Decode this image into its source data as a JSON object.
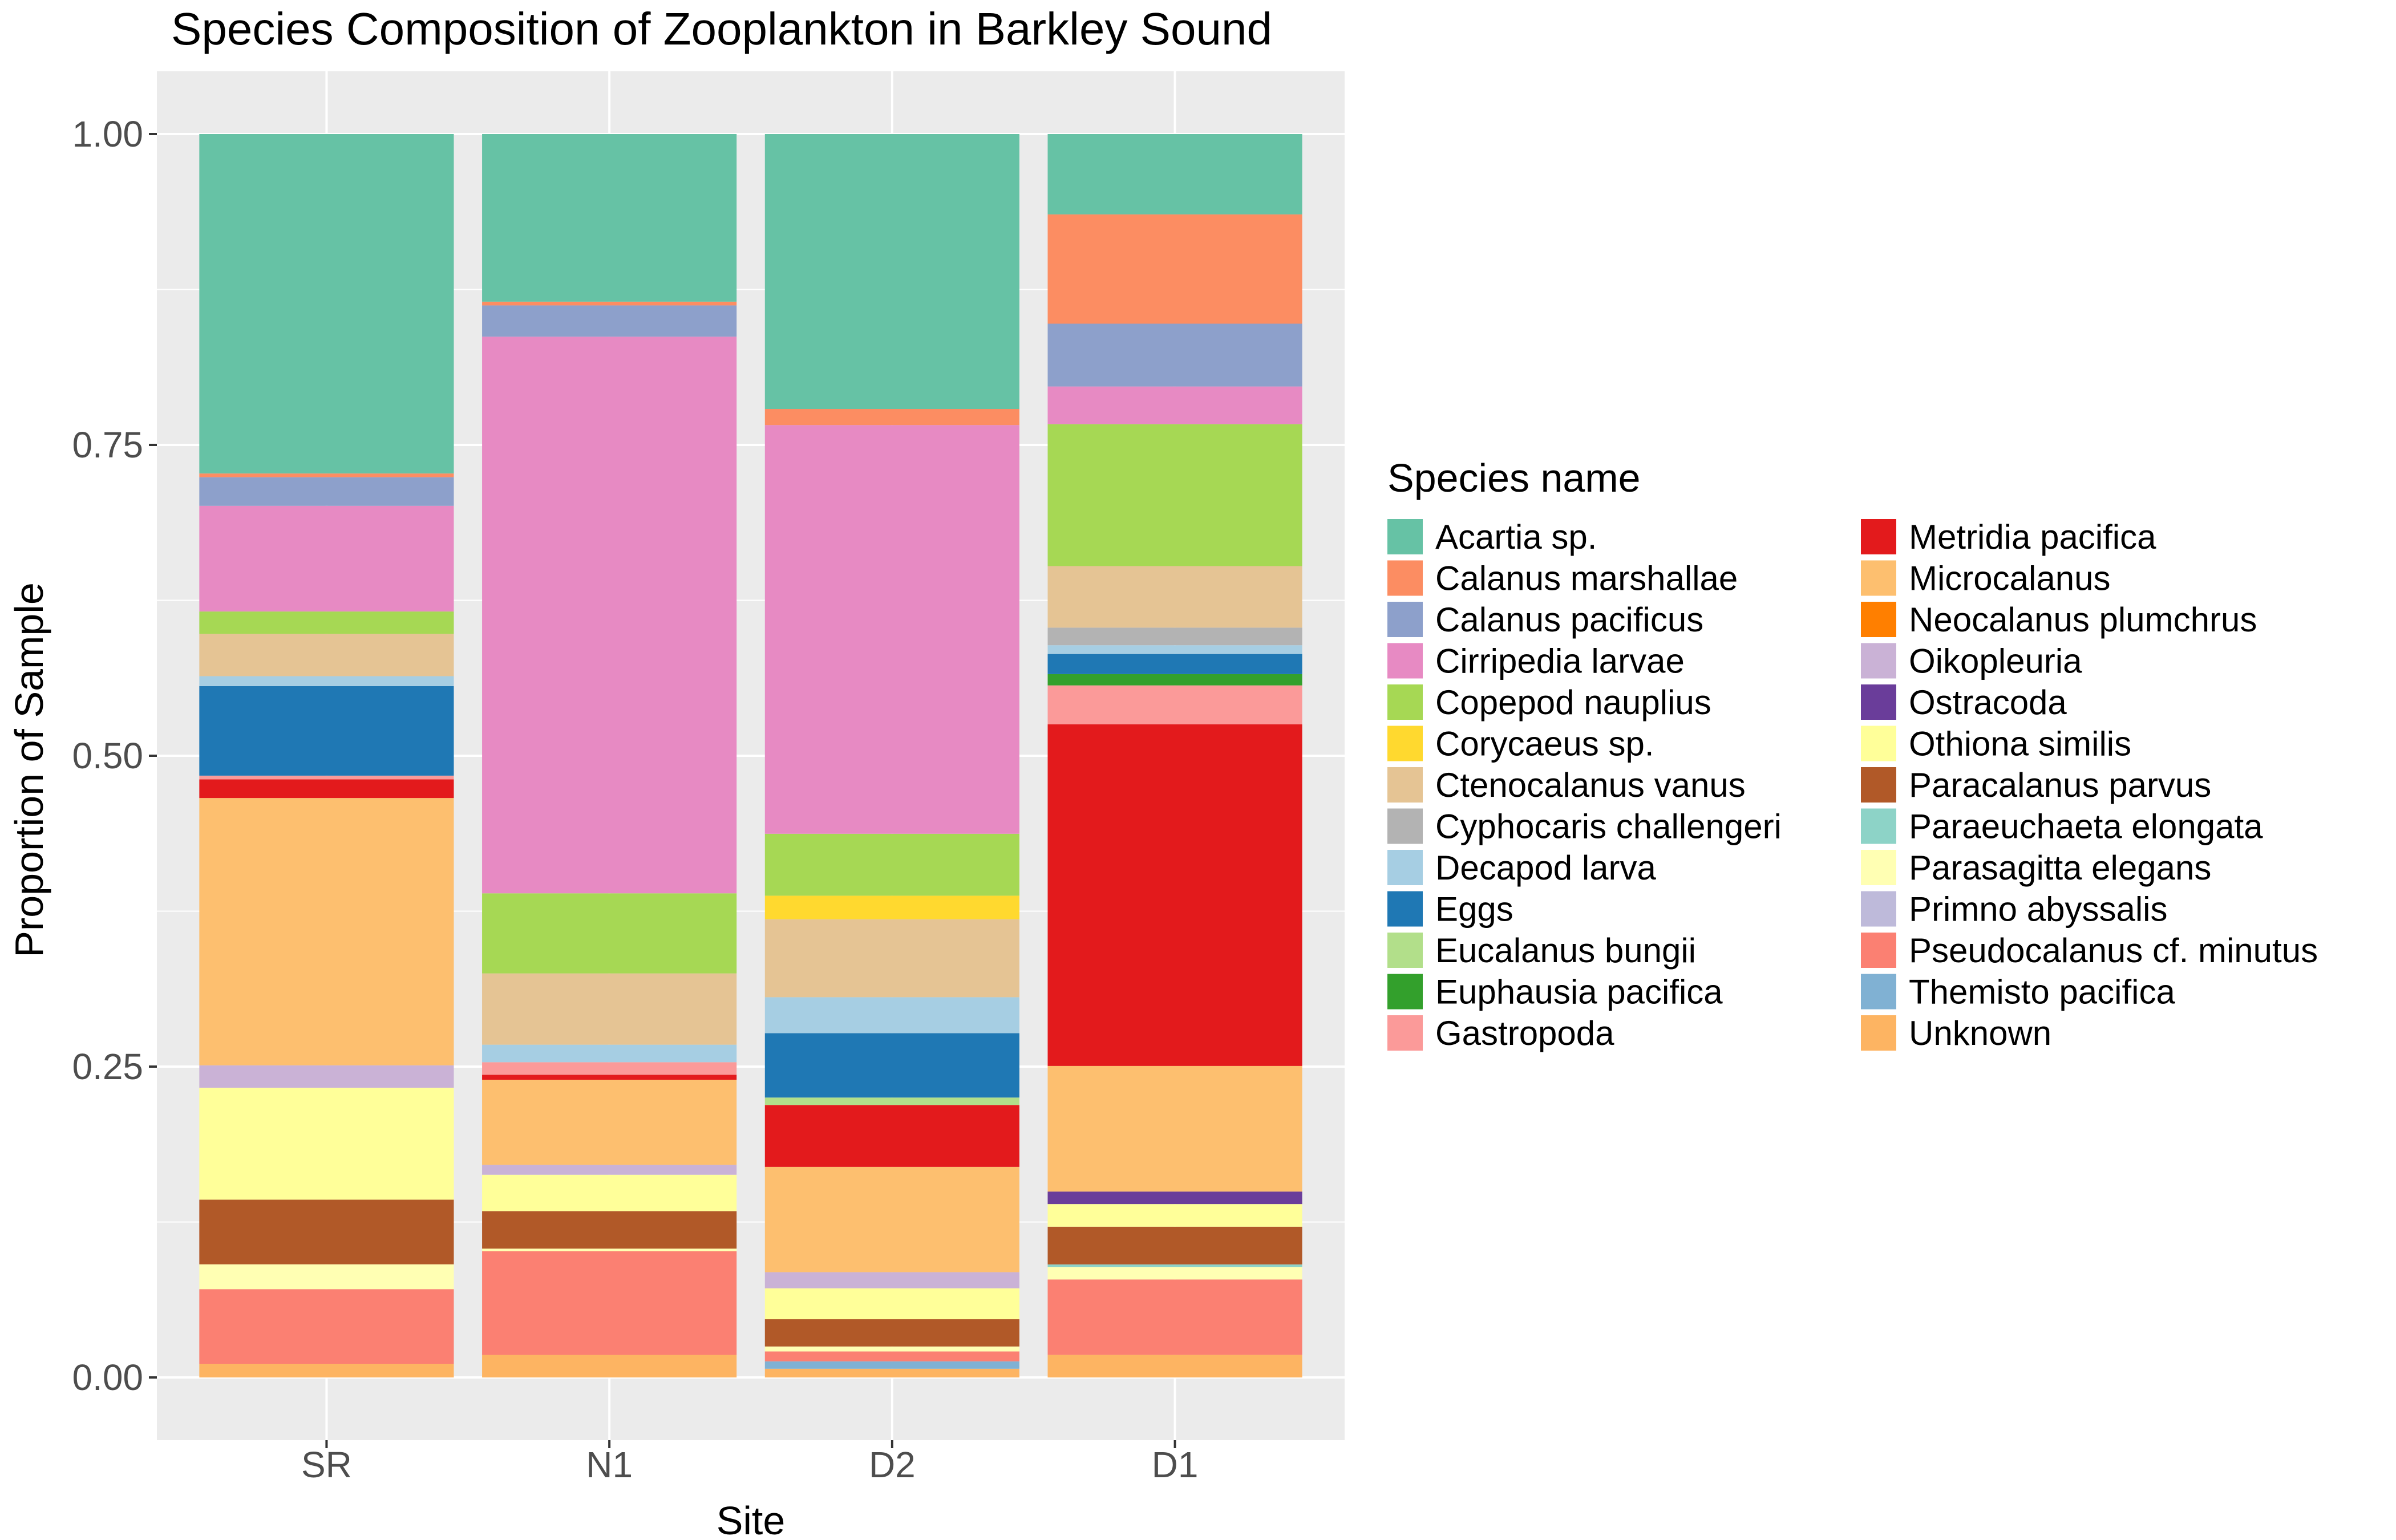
{
  "chart_data": {
    "type": "bar",
    "stacked": true,
    "title": "Species Composition of Zooplankton in Barkley Sound",
    "xlabel": "Site",
    "ylabel": "Proportion of Sample",
    "categories": [
      "SR",
      "N1",
      "D2",
      "D1"
    ],
    "ylim": [
      0,
      1
    ],
    "yticks": [
      "0.00",
      "0.25",
      "0.50",
      "0.75",
      "1.00"
    ],
    "grid": true,
    "legend_title": "Species name",
    "legend_position": "right",
    "series": [
      {
        "name": "Acartia sp.",
        "color": "#66C2A5",
        "values": [
          0.273,
          0.134,
          0.222,
          0.064
        ]
      },
      {
        "name": "Calanus marshallae",
        "color": "#FC8D62",
        "values": [
          0.003,
          0.003,
          0.013,
          0.087
        ]
      },
      {
        "name": "Calanus pacificus",
        "color": "#8DA0CB",
        "values": [
          0.023,
          0.025,
          0.0,
          0.05
        ]
      },
      {
        "name": "Cirripedia larvae",
        "color": "#E78AC3",
        "values": [
          0.085,
          0.445,
          0.33,
          0.03
        ]
      },
      {
        "name": "Copepod nauplius",
        "color": "#A6D854",
        "values": [
          0.018,
          0.064,
          0.05,
          0.113
        ]
      },
      {
        "name": "Corycaeus sp.",
        "color": "#FFD92F",
        "values": [
          0.0,
          0.0,
          0.019,
          0.0
        ]
      },
      {
        "name": "Ctenocalanus vanus",
        "color": "#E5C494",
        "values": [
          0.034,
          0.057,
          0.063,
          0.049
        ]
      },
      {
        "name": "Cyphocaris challengeri",
        "color": "#B3B3B3",
        "values": [
          0.0,
          0.0,
          0.0,
          0.014
        ]
      },
      {
        "name": "Decapod larva",
        "color": "#A6CEE3",
        "values": [
          0.008,
          0.014,
          0.029,
          0.007
        ]
      },
      {
        "name": "Eggs",
        "color": "#1F78B4",
        "values": [
          0.072,
          0.0,
          0.052,
          0.016
        ]
      },
      {
        "name": "Eucalanus bungii",
        "color": "#B2DF8A",
        "values": [
          0.0,
          0.0,
          0.006,
          0.0
        ]
      },
      {
        "name": "Euphausia pacifica",
        "color": "#33A02C",
        "values": [
          0.0,
          0.0,
          0.0,
          0.009
        ]
      },
      {
        "name": "Gastropoda",
        "color": "#FB9A99",
        "values": [
          0.003,
          0.01,
          0.0,
          0.031
        ]
      },
      {
        "name": "Metridia pacifica",
        "color": "#E31A1C",
        "values": [
          0.015,
          0.004,
          0.05,
          0.272
        ]
      },
      {
        "name": "Microcalanus",
        "color": "#FDBF6F",
        "values": [
          0.215,
          0.068,
          0.085,
          0.1
        ]
      },
      {
        "name": "Neocalanus plumchrus",
        "color": "#FF7F00",
        "values": [
          0.0,
          0.0,
          0.0,
          0.0
        ]
      },
      {
        "name": "Oikopleuria",
        "color": "#CAB2D6",
        "values": [
          0.018,
          0.008,
          0.013,
          0.0
        ]
      },
      {
        "name": "Ostracoda",
        "color": "#6A3D9A",
        "values": [
          0.0,
          0.0,
          0.0,
          0.01
        ]
      },
      {
        "name": "Othiona similis",
        "color": "#FFFF99",
        "values": [
          0.09,
          0.029,
          0.025,
          0.018
        ]
      },
      {
        "name": "Paracalanus parvus",
        "color": "#B15928",
        "values": [
          0.052,
          0.03,
          0.022,
          0.03
        ]
      },
      {
        "name": "Paraeuchaeta elongata",
        "color": "#8DD3C7",
        "values": [
          0.0,
          0.0,
          0.0,
          0.002
        ]
      },
      {
        "name": "Parasagitta elegans",
        "color": "#FFFFB3",
        "values": [
          0.02,
          0.002,
          0.004,
          0.01
        ]
      },
      {
        "name": "Primno abyssalis",
        "color": "#BEBADA",
        "values": [
          0.0,
          0.0,
          0.0,
          0.0
        ]
      },
      {
        "name": "Pseudocalanus cf. minutus",
        "color": "#FB8072",
        "values": [
          0.06,
          0.083,
          0.008,
          0.06
        ]
      },
      {
        "name": "Themisto pacifica",
        "color": "#80B1D3",
        "values": [
          0.0,
          0.0,
          0.006,
          0.0
        ]
      },
      {
        "name": "Unknown",
        "color": "#FDB462",
        "values": [
          0.011,
          0.018,
          0.007,
          0.018
        ]
      }
    ]
  }
}
